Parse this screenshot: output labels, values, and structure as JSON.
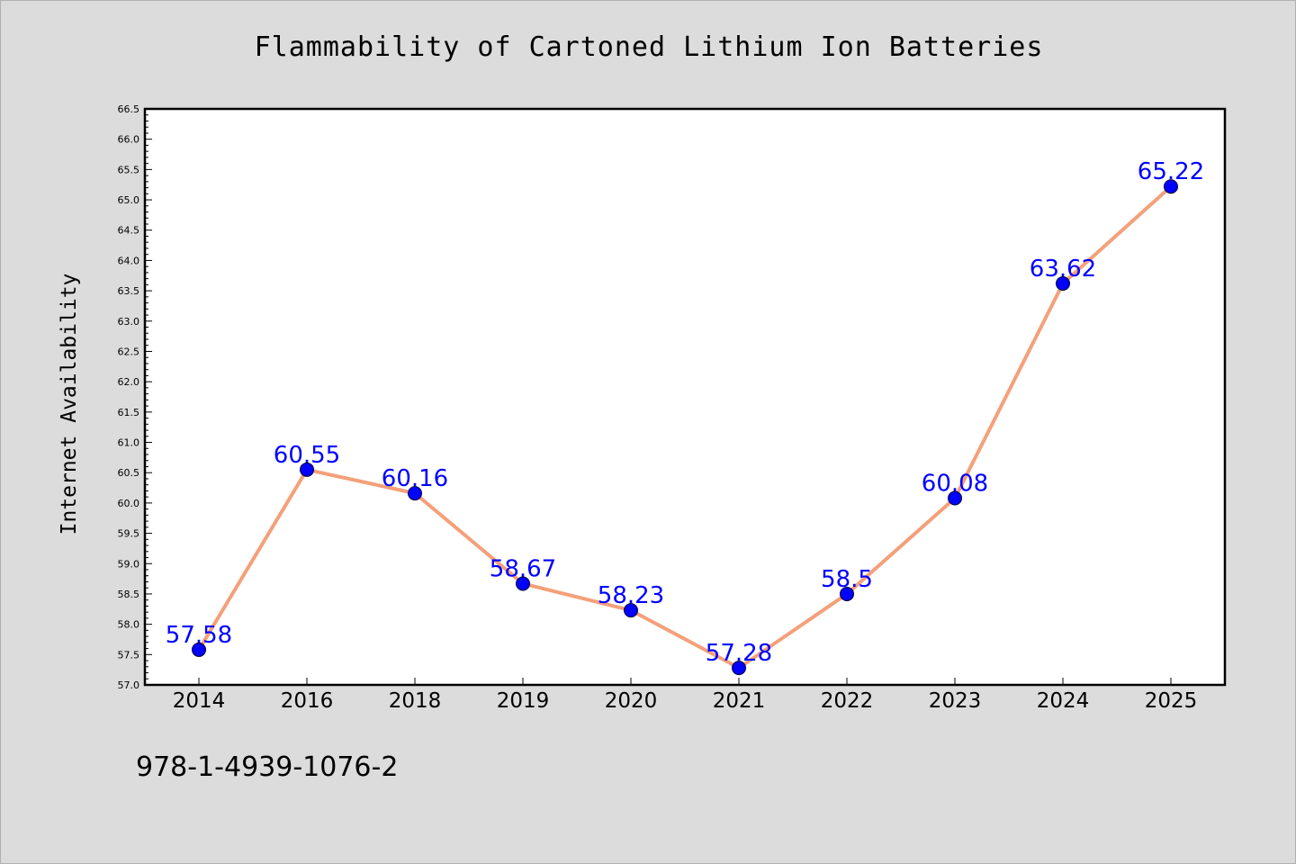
{
  "chart_data": {
    "type": "line",
    "title": "Flammability of Cartoned Lithium Ion Batteries",
    "xlabel": "",
    "ylabel": "Internet Availability",
    "categories": [
      "2014",
      "2016",
      "2018",
      "2019",
      "2020",
      "2021",
      "2022",
      "2023",
      "2024",
      "2025"
    ],
    "series": [
      {
        "values": [
          57.58,
          60.55,
          60.16,
          58.67,
          58.23,
          57.28,
          58.5,
          60.08,
          63.62,
          65.22
        ],
        "labels": [
          "57.58",
          "60.55",
          "60.16",
          "58.67",
          "58.23",
          "57.28",
          "58.5",
          "60.08",
          "63.62",
          "65.22"
        ]
      }
    ],
    "ylim": [
      57.0,
      66.5
    ],
    "yticks": [
      "57.0",
      "57.5",
      "58.0",
      "58.5",
      "59.0",
      "59.5",
      "60.0",
      "60.5",
      "61.0",
      "61.5",
      "62.0",
      "62.5",
      "63.0",
      "63.5",
      "64.0",
      "64.5",
      "65.0",
      "65.5",
      "66.0",
      "66.5"
    ],
    "grid": false,
    "legend": "none",
    "colors": {
      "line": "#f4a07a",
      "marker": "#0000ff",
      "data_label": "#0000ff",
      "plot_background": "#ffffff",
      "page_background": "#dcdcdc"
    }
  },
  "footnote": "978-1-4939-1076-2"
}
